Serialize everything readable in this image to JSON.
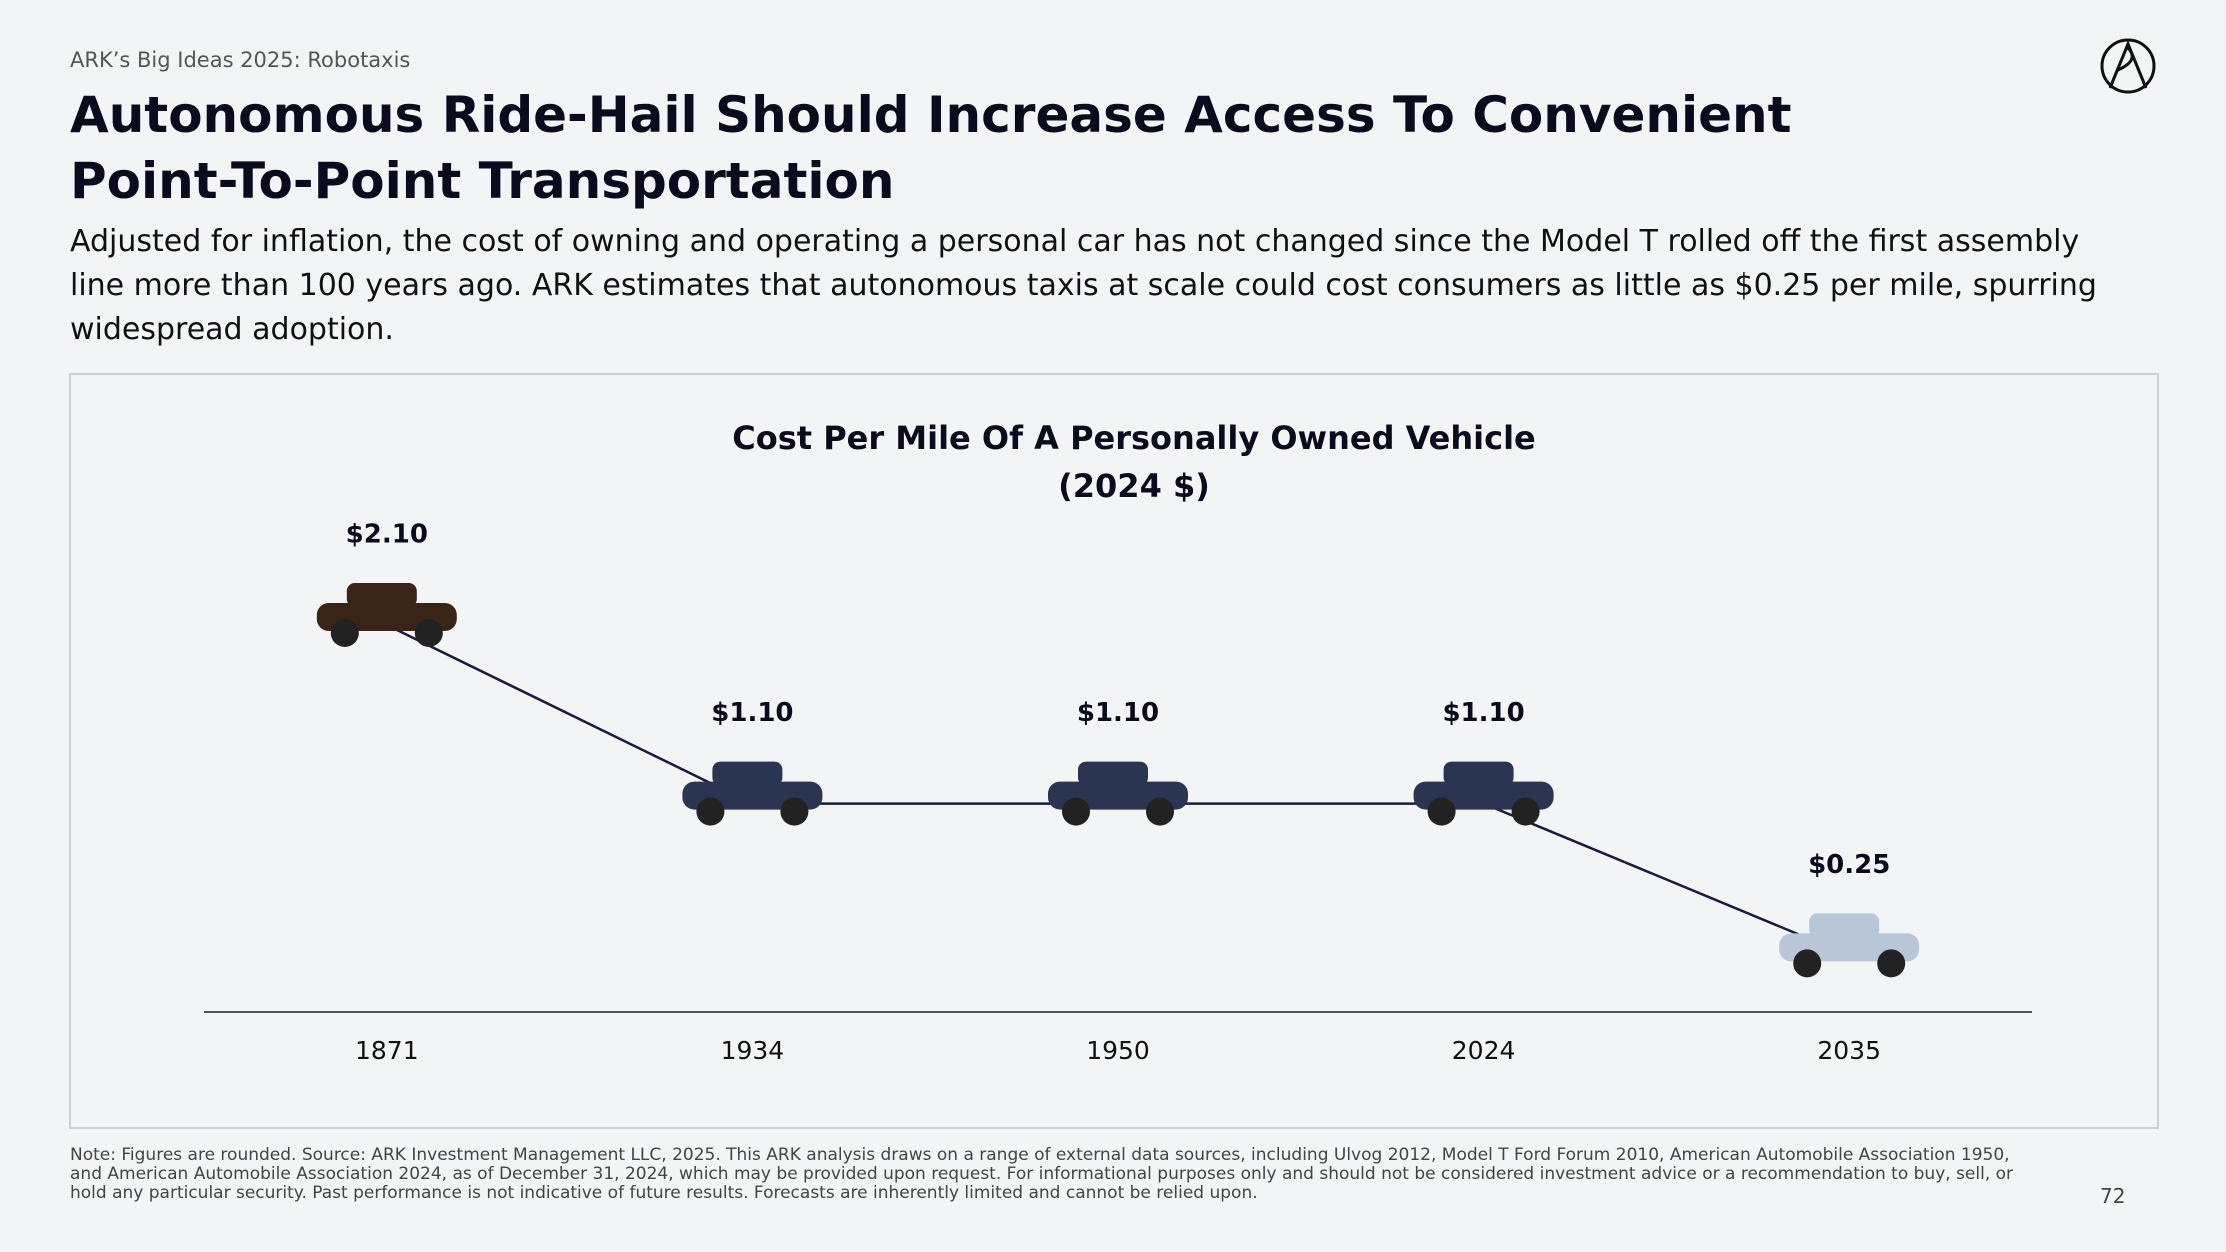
{
  "header": {
    "kicker": "ARK’s Big Ideas 2025: Robotaxis",
    "title": "Autonomous Ride-Hail Should Increase Access To Convenient Point-To-Point Transportation",
    "subtitle": "Adjusted for inflation, the cost of owning and operating a personal car has not changed since the Model T rolled off the first assembly line more than 100 years ago. ARK estimates that autonomous taxis at scale could cost consumers as little as $0.25 per mile, spurring widespread adoption."
  },
  "chart_data": {
    "type": "line",
    "title": "Cost Per Mile Of A Personally Owned Vehicle",
    "subtitle": "(2024 $)",
    "categories": [
      "1871",
      "1934",
      "1950",
      "2024",
      "2035"
    ],
    "values": [
      2.1,
      1.1,
      1.1,
      1.1,
      0.25
    ],
    "value_labels": [
      "$2.10",
      "$1.10",
      "$1.10",
      "$1.10",
      "$0.25"
    ],
    "color": "#1a1a3a"
  },
  "footer": {
    "note": "Note: Figures are rounded. Source: ARK Investment Management LLC, 2025. This ARK analysis draws on a range of external data sources, including Ulvog 2012, Model T Ford Forum 2010, American Automobile Association 1950, and American Automobile Association 2024, as of December 31, 2024, which may be provided upon request. For informational purposes only and should not be considered investment advice or a recommendation to buy, sell, or hold any particular security. Past performance is not indicative of future results. Forecasts are inherently limited and cannot be relied upon.",
    "page": "72"
  }
}
